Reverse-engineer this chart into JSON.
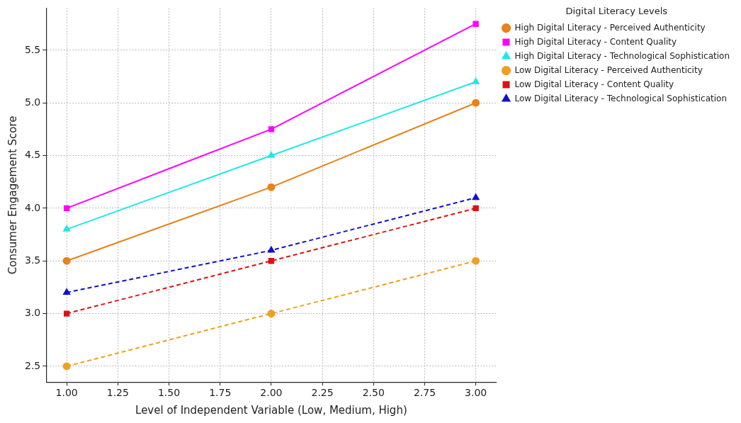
{
  "chart_data": {
    "type": "line",
    "xlabel": "Level of Independent Variable (Low, Medium, High)",
    "ylabel": "Consumer Engagement Score",
    "legend_title": "Digital Literacy Levels",
    "x": [
      1,
      2,
      3
    ],
    "series": [
      {
        "name": "High Digital Literacy - Perceived Authenticity",
        "color": "#e8821a",
        "values": [
          3.5,
          4.2,
          5.0
        ],
        "marker": "circle",
        "line_style": "solid"
      },
      {
        "name": "High Digital Literacy - Content Quality",
        "color": "#ff00ff",
        "values": [
          4.0,
          4.75,
          5.75
        ],
        "marker": "square",
        "line_style": "solid"
      },
      {
        "name": "High Digital Literacy - Technological Sophistication",
        "color": "#1ee8e8",
        "values": [
          3.8,
          4.5,
          5.2
        ],
        "marker": "triangle",
        "line_style": "solid"
      },
      {
        "name": "Low Digital Literacy - Perceived Authenticity",
        "color": "#f0a020",
        "values": [
          2.5,
          3.0,
          3.5
        ],
        "marker": "circle",
        "line_style": "dashed"
      },
      {
        "name": "Low Digital Literacy - Content Quality",
        "color": "#e01010",
        "values": [
          3.0,
          3.5,
          4.0
        ],
        "marker": "square",
        "line_style": "dashed"
      },
      {
        "name": "Low Digital Literacy - Technological Sophistication",
        "color": "#1010d0",
        "values": [
          3.2,
          3.6,
          4.1
        ],
        "marker": "triangle",
        "line_style": "dashed"
      }
    ],
    "xlim": [
      0.9,
      3.1
    ],
    "xticks": [
      {
        "value": 1,
        "label": "1.00"
      },
      {
        "value": 1.25,
        "label": "1.25"
      },
      {
        "value": 1.5,
        "label": "1.50"
      },
      {
        "value": 1.75,
        "label": "1.75"
      },
      {
        "value": 2,
        "label": "2.00"
      },
      {
        "value": 2.25,
        "label": "2.25"
      },
      {
        "value": 2.5,
        "label": "2.50"
      },
      {
        "value": 2.75,
        "label": "2.75"
      },
      {
        "value": 3,
        "label": "3.00"
      }
    ],
    "ylim": [
      2.35,
      5.9
    ],
    "yticks": [
      {
        "value": 2.5,
        "label": "2.5"
      },
      {
        "value": 3,
        "label": "3.0"
      },
      {
        "value": 3.5,
        "label": "3.5"
      },
      {
        "value": 4,
        "label": "4.0"
      },
      {
        "value": 4.5,
        "label": "4.5"
      },
      {
        "value": 5,
        "label": "5.0"
      },
      {
        "value": 5.5,
        "label": "5.5"
      }
    ],
    "grid": true,
    "legend": "top right"
  }
}
